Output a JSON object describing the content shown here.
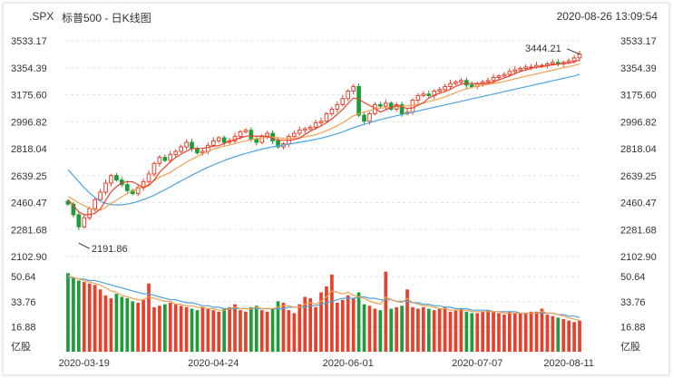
{
  "header": {
    "symbol": ".SPX",
    "name": "标普500 - 日K线图",
    "timestamp": "2020-08-26 13:09:54"
  },
  "colors": {
    "up": "#e8402b",
    "down": "#1e9c3a",
    "ma5": "#e8402b",
    "ma10": "#f0a050",
    "ma20": "#4aa3df",
    "grid": "#e3e3e3"
  },
  "chart_data": [
    {
      "type": "candlestick",
      "price_ticks": [
        "3533.17",
        "3354.39",
        "3175.60",
        "2996.82",
        "2818.04",
        "2639.25",
        "2460.47",
        "2281.68",
        "2102.90"
      ],
      "ylim": [
        2102.9,
        3533.17
      ],
      "high_label": "3444.21",
      "low_label": "2191.86",
      "x_ticks": [
        "2020-03-19",
        "2020-04-24",
        "2020-06-01",
        "2020-07-07",
        "2020-08-11"
      ],
      "close": [
        2450,
        2380,
        2300,
        2360,
        2420,
        2480,
        2530,
        2590,
        2640,
        2610,
        2580,
        2540,
        2520,
        2560,
        2600,
        2650,
        2720,
        2760,
        2740,
        2780,
        2800,
        2830,
        2860,
        2820,
        2790,
        2800,
        2840,
        2870,
        2890,
        2860,
        2870,
        2900,
        2930,
        2940,
        2880,
        2860,
        2900,
        2920,
        2870,
        2830,
        2850,
        2900,
        2920,
        2940,
        2950,
        2960,
        2990,
        3000,
        3050,
        3080,
        3110,
        3150,
        3200,
        3230,
        3040,
        3000,
        3050,
        3110,
        3100,
        3120,
        3080,
        3110,
        3050,
        3060,
        3140,
        3170,
        3180,
        3170,
        3200,
        3210,
        3230,
        3250,
        3260,
        3270,
        3240,
        3230,
        3250,
        3260,
        3270,
        3290,
        3300,
        3310,
        3330,
        3340,
        3350,
        3360,
        3360,
        3370,
        3370,
        3380,
        3390,
        3380,
        3390,
        3400,
        3420,
        3444
      ],
      "open": [
        2470,
        2450,
        2380,
        2300,
        2360,
        2420,
        2480,
        2530,
        2590,
        2640,
        2610,
        2580,
        2540,
        2520,
        2560,
        2600,
        2650,
        2720,
        2760,
        2740,
        2780,
        2800,
        2830,
        2860,
        2820,
        2790,
        2800,
        2840,
        2870,
        2890,
        2860,
        2870,
        2900,
        2930,
        2940,
        2880,
        2860,
        2900,
        2920,
        2870,
        2830,
        2850,
        2900,
        2920,
        2940,
        2950,
        2960,
        2990,
        3000,
        3050,
        3080,
        3110,
        3150,
        3200,
        3230,
        3040,
        3000,
        3050,
        3110,
        3100,
        3120,
        3080,
        3110,
        3050,
        3060,
        3140,
        3170,
        3180,
        3170,
        3200,
        3210,
        3230,
        3250,
        3260,
        3270,
        3240,
        3230,
        3250,
        3260,
        3270,
        3290,
        3300,
        3310,
        3330,
        3340,
        3350,
        3360,
        3360,
        3370,
        3370,
        3380,
        3390,
        3380,
        3390,
        3400,
        3420
      ],
      "ma5": [
        2480,
        2440,
        2400,
        2380,
        2382,
        2388,
        2418,
        2476,
        2532,
        2566,
        2590,
        2600,
        2598,
        2580,
        2560,
        2574,
        2610,
        2662,
        2696,
        2730,
        2760,
        2782,
        2802,
        2818,
        2820,
        2820,
        2826,
        2834,
        2838,
        2852,
        2868,
        2878,
        2890,
        2900,
        2904,
        2900,
        2902,
        2900,
        2886,
        2876,
        2874,
        2874,
        2878,
        2888,
        2912,
        2934,
        2952,
        2968,
        2990,
        3016,
        3046,
        3078,
        3118,
        3154,
        3146,
        3124,
        3104,
        3086,
        3060,
        3076,
        3092,
        3104,
        3094,
        3084,
        3088,
        3106,
        3122,
        3154,
        3172,
        3186,
        3196,
        3212,
        3230,
        3246,
        3250,
        3250,
        3248,
        3248,
        3252,
        3260,
        3274,
        3286,
        3300,
        3316,
        3330,
        3340,
        3350,
        3358,
        3362,
        3368,
        3374,
        3378,
        3382,
        3386,
        3394,
        3407
      ],
      "ma10": [
        2500,
        2480,
        2460,
        2440,
        2425,
        2412,
        2410,
        2428,
        2455,
        2476,
        2500,
        2520,
        2538,
        2556,
        2566,
        2582,
        2605,
        2630,
        2645,
        2660,
        2685,
        2705,
        2730,
        2748,
        2766,
        2784,
        2800,
        2815,
        2826,
        2834,
        2842,
        2852,
        2862,
        2870,
        2878,
        2884,
        2890,
        2895,
        2894,
        2890,
        2887,
        2888,
        2889,
        2892,
        2896,
        2903,
        2912,
        2924,
        2937,
        2952,
        2970,
        2990,
        3012,
        3036,
        3050,
        3060,
        3070,
        3080,
        3086,
        3090,
        3092,
        3096,
        3099,
        3102,
        3106,
        3112,
        3120,
        3130,
        3140,
        3150,
        3162,
        3176,
        3190,
        3204,
        3214,
        3224,
        3232,
        3238,
        3244,
        3250,
        3256,
        3264,
        3272,
        3282,
        3290,
        3298,
        3306,
        3314,
        3322,
        3330,
        3338,
        3346,
        3354,
        3362,
        3370,
        3380
      ],
      "ma20": [
        2680,
        2640,
        2600,
        2560,
        2525,
        2495,
        2470,
        2455,
        2448,
        2445,
        2446,
        2450,
        2458,
        2468,
        2480,
        2494,
        2510,
        2528,
        2546,
        2565,
        2585,
        2604,
        2623,
        2642,
        2660,
        2678,
        2694,
        2710,
        2725,
        2740,
        2752,
        2764,
        2776,
        2786,
        2796,
        2806,
        2815,
        2823,
        2830,
        2836,
        2842,
        2848,
        2854,
        2860,
        2866,
        2873,
        2880,
        2888,
        2897,
        2907,
        2918,
        2930,
        2943,
        2956,
        2968,
        2979,
        2990,
        3001,
        3011,
        3020,
        3028,
        3036,
        3044,
        3052,
        3060,
        3068,
        3076,
        3084,
        3092,
        3100,
        3108,
        3116,
        3124,
        3132,
        3140,
        3148,
        3156,
        3164,
        3172,
        3180,
        3188,
        3196,
        3204,
        3212,
        3220,
        3228,
        3236,
        3244,
        3252,
        3260,
        3268,
        3276,
        3284,
        3292,
        3300,
        3310
      ],
      "volume_ticks": [
        "50.64",
        "33.76",
        "16.88"
      ],
      "volume_unit": "亿股",
      "volume_ylim": [
        0,
        55
      ],
      "volume": [
        53,
        50,
        48,
        47,
        46,
        45,
        42,
        38,
        36,
        39,
        37,
        36,
        34,
        33,
        35,
        46,
        30,
        31,
        32,
        33,
        32,
        31,
        30,
        29,
        28,
        30,
        29,
        28,
        27,
        29,
        30,
        32,
        28,
        27,
        30,
        31,
        28,
        27,
        29,
        34,
        33,
        28,
        26,
        32,
        37,
        36,
        30,
        40,
        44,
        52,
        33,
        35,
        38,
        36,
        40,
        32,
        31,
        29,
        28,
        54,
        29,
        30,
        31,
        42,
        30,
        29,
        30,
        29,
        28,
        29,
        30,
        27,
        28,
        29,
        27,
        26,
        26,
        27,
        28,
        27,
        26,
        25,
        27,
        26,
        26,
        26,
        27,
        27,
        29,
        25,
        24,
        23,
        22,
        21,
        20,
        21
      ],
      "vol_ma5": [
        51,
        50,
        49,
        48,
        47,
        46,
        45,
        43,
        41,
        40,
        38,
        37,
        36,
        35,
        35,
        37,
        36,
        35,
        34,
        34,
        32,
        32,
        31,
        31,
        30,
        30,
        29,
        29,
        28,
        28,
        29,
        30,
        29,
        29,
        29,
        30,
        29,
        29,
        29,
        30,
        31,
        31,
        30,
        30,
        32,
        33,
        32,
        34,
        37,
        41,
        40,
        39,
        40,
        38,
        37,
        36,
        34,
        33,
        32,
        37,
        35,
        34,
        33,
        36,
        33,
        32,
        31,
        31,
        30,
        29,
        29,
        28,
        28,
        28,
        28,
        27,
        27,
        27,
        27,
        27,
        27,
        26,
        26,
        26,
        26,
        26,
        26,
        26,
        27,
        26,
        26,
        25,
        24,
        23,
        22,
        21
      ],
      "vol_ma10": [
        50,
        50,
        49,
        49,
        48,
        48,
        47,
        46,
        45,
        44,
        43,
        42,
        41,
        40,
        39,
        39,
        38,
        37,
        36,
        35,
        35,
        34,
        33,
        33,
        32,
        31,
        31,
        30,
        30,
        29,
        29,
        29,
        29,
        29,
        29,
        29,
        29,
        29,
        29,
        29,
        29,
        30,
        30,
        30,
        30,
        31,
        31,
        32,
        33,
        34,
        35,
        36,
        36,
        36,
        37,
        37,
        36,
        36,
        35,
        35,
        35,
        34,
        34,
        34,
        33,
        33,
        32,
        32,
        31,
        31,
        30,
        30,
        29,
        29,
        29,
        28,
        28,
        28,
        28,
        27,
        27,
        27,
        27,
        27,
        26,
        26,
        26,
        26,
        26,
        26,
        26,
        25,
        25,
        24,
        24,
        23
      ]
    }
  ]
}
